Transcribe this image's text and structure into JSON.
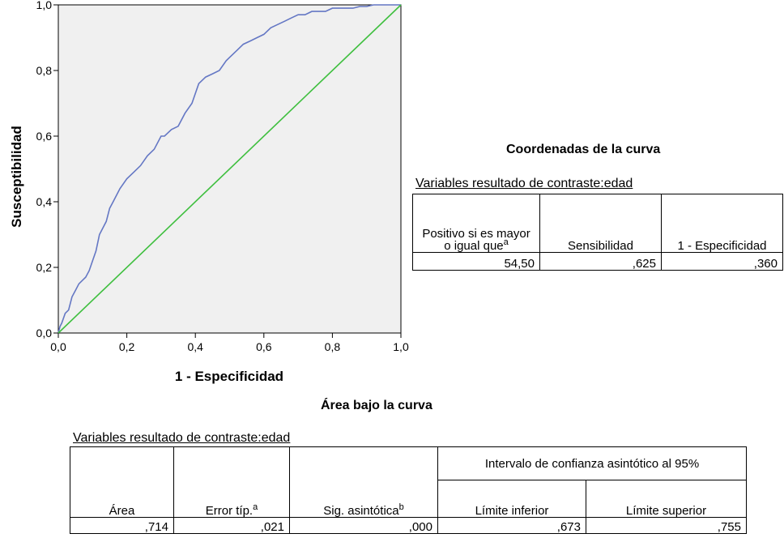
{
  "chart_data": {
    "type": "line",
    "xlabel": "1 - Especificidad",
    "ylabel": "Susceptibilidad",
    "xlim": [
      0,
      1
    ],
    "ylim": [
      0,
      1
    ],
    "x_ticks": [
      "0,0",
      "0,2",
      "0,4",
      "0,6",
      "0,8",
      "1,0"
    ],
    "y_ticks": [
      "0,0",
      "0,2",
      "0,4",
      "0,6",
      "0,8",
      "1,0"
    ],
    "grid": false,
    "series": [
      {
        "color": "#6477c4",
        "x": [
          0,
          0.005,
          0.01,
          0.02,
          0.03,
          0.04,
          0.05,
          0.06,
          0.07,
          0.08,
          0.09,
          0.1,
          0.11,
          0.12,
          0.13,
          0.14,
          0.15,
          0.16,
          0.18,
          0.2,
          0.22,
          0.24,
          0.26,
          0.28,
          0.3,
          0.31,
          0.33,
          0.35,
          0.37,
          0.39,
          0.41,
          0.43,
          0.45,
          0.47,
          0.49,
          0.5,
          0.52,
          0.54,
          0.56,
          0.58,
          0.6,
          0.62,
          0.64,
          0.66,
          0.68,
          0.7,
          0.72,
          0.74,
          0.76,
          0.78,
          0.8,
          0.82,
          0.84,
          0.86,
          0.88,
          0.9,
          0.92,
          0.94,
          0.96,
          0.98,
          1.0
        ],
        "y": [
          0,
          0.02,
          0.03,
          0.06,
          0.07,
          0.11,
          0.13,
          0.15,
          0.16,
          0.17,
          0.19,
          0.22,
          0.25,
          0.3,
          0.32,
          0.34,
          0.38,
          0.4,
          0.44,
          0.47,
          0.49,
          0.51,
          0.54,
          0.56,
          0.6,
          0.6,
          0.62,
          0.63,
          0.67,
          0.7,
          0.76,
          0.78,
          0.79,
          0.8,
          0.83,
          0.84,
          0.86,
          0.88,
          0.89,
          0.9,
          0.91,
          0.93,
          0.94,
          0.95,
          0.96,
          0.97,
          0.97,
          0.98,
          0.98,
          0.98,
          0.99,
          0.99,
          0.99,
          0.99,
          0.995,
          0.995,
          1.0,
          1.0,
          1.0,
          1.0,
          1.0
        ]
      },
      {
        "color": "#3fbf3f",
        "x": [
          0,
          1
        ],
        "y": [
          0,
          1
        ]
      }
    ]
  },
  "coords_table": {
    "title": "Coordenadas de la curva",
    "caption": "Variables resultado de contraste:edad",
    "header": [
      "Positivo si es mayor o igual que",
      "a",
      "Sensibilidad",
      "1 - Especificidad"
    ],
    "row": [
      "54,50",
      ",625",
      ",360"
    ]
  },
  "area_table": {
    "title": "Área bajo la curva",
    "caption": "Variables resultado de contraste:edad",
    "group_header": "Intervalo de confianza asintótico al 95%",
    "cols": [
      "Área",
      "Error típ.",
      "a",
      "Sig. asintótica",
      "b",
      "Límite inferior",
      "Límite superior"
    ],
    "row": [
      ",714",
      ",021",
      ",000",
      ",673",
      ",755"
    ]
  }
}
